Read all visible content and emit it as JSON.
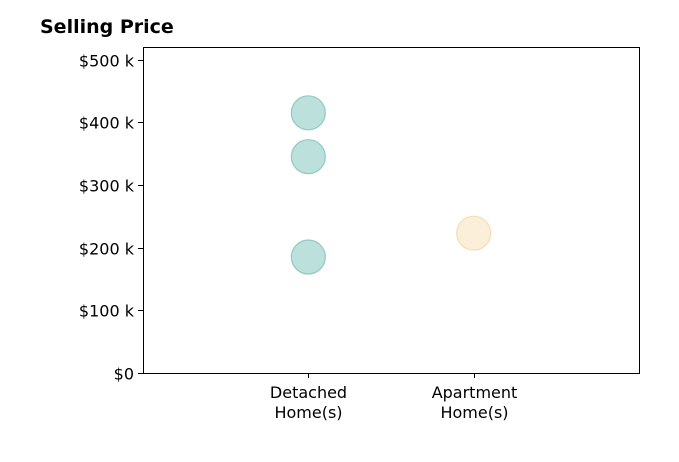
{
  "chart_data": {
    "type": "scatter",
    "title": "Selling Price",
    "xlabel": "",
    "ylabel": "",
    "categories": [
      [
        "Detached",
        "Home(s)"
      ],
      [
        "Apartment",
        "Home(s)"
      ]
    ],
    "xlim": [
      -1,
      2
    ],
    "ylim": [
      0,
      520000
    ],
    "yticks": [
      {
        "value": 0,
        "label": "$0"
      },
      {
        "value": 100000,
        "label": "$100 k"
      },
      {
        "value": 200000,
        "label": "$200 k"
      },
      {
        "value": 300000,
        "label": "$300 k"
      },
      {
        "value": 400000,
        "label": "$400 k"
      },
      {
        "value": 500000,
        "label": "$500 k"
      }
    ],
    "series": [
      {
        "category_index": 0,
        "color": "#8fcdc6",
        "stroke": "#6fb9b1",
        "points": [
          415000,
          345000,
          185000
        ]
      },
      {
        "category_index": 1,
        "color": "#f8e4bf",
        "stroke": "#f0d3a0",
        "points": [
          223000
        ]
      }
    ],
    "grid": false,
    "legend": "none"
  }
}
